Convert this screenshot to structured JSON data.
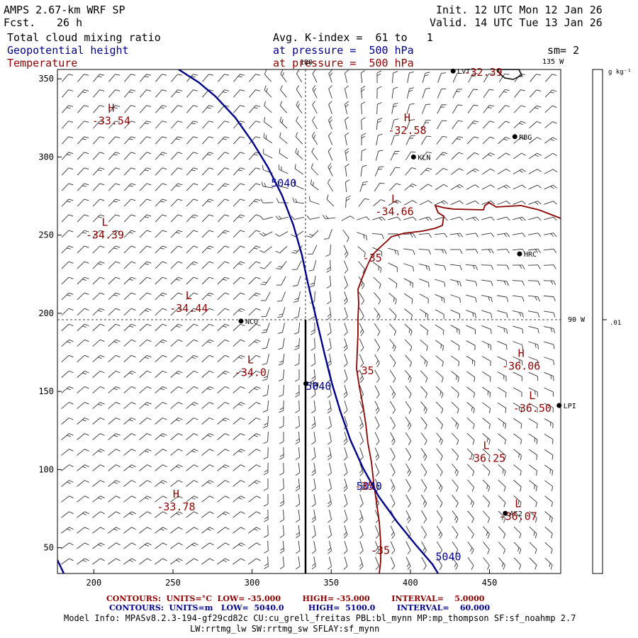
{
  "header": {
    "model": "AMPS 2.67-km WRF SP",
    "fcst_label": "Fcst.",
    "fcst_value": "26 h",
    "init": "Init. 12 UTC Mon 12 Jan 26",
    "valid": "Valid. 14 UTC Tue 13 Jan 26",
    "field1": "Total cloud mixing ratio",
    "field2": "Geopotential height",
    "field3": "Temperature",
    "avg": "Avg. K-index =  61 to   1",
    "pressure1": "at pressure =  500 hPa",
    "pressure2": "at pressure =  500 hPa",
    "sm": "sm= 2"
  },
  "axes": {
    "x_ticks": [
      "200",
      "250",
      "300",
      "350",
      "400",
      "450"
    ],
    "y_ticks": [
      "350",
      "300",
      "250",
      "200",
      "150",
      "100",
      "50"
    ],
    "lon_labels": {
      "top_180": "180",
      "top_135w": "135 W",
      "right_90w": "90 W"
    }
  },
  "colorbar": {
    "unit": "g kg⁻¹",
    "value": ".01"
  },
  "stations": [
    {
      "name": "LVT",
      "x": 427,
      "y": 355
    },
    {
      "name": "RBG",
      "x": 466,
      "y": 313
    },
    {
      "name": "KLN",
      "x": 402,
      "y": 300
    },
    {
      "name": "HRC",
      "x": 469,
      "y": 238
    },
    {
      "name": "NCO",
      "x": 293,
      "y": 195
    },
    {
      "name": "Hm",
      "x": 334,
      "y": 155
    },
    {
      "name": "AC2",
      "x": 460,
      "y": 72
    },
    {
      "name": "LPI",
      "x": 494,
      "y": 141
    }
  ],
  "extrema": [
    {
      "type": "H",
      "value": "-33.54",
      "x": 211,
      "y": 329
    },
    {
      "type": "H",
      "value": "-32.58",
      "x": 398,
      "y": 323
    },
    {
      "type": "L",
      "value": "-34.66",
      "x": 390,
      "y": 271
    },
    {
      "type": "L",
      "value": "-34.39",
      "x": 207,
      "y": 256
    },
    {
      "type": "L",
      "value": "-34.44",
      "x": 260,
      "y": 209
    },
    {
      "type": "L",
      "value": "-34.0",
      "x": 299,
      "y": 168
    },
    {
      "type": "H",
      "value": "-36.06",
      "x": 470,
      "y": 172
    },
    {
      "type": "L",
      "value": "-36.50",
      "x": 477,
      "y": 145
    },
    {
      "type": "L",
      "value": "-36.25",
      "x": 448,
      "y": 113
    },
    {
      "type": "H",
      "value": "-33.78",
      "x": 252,
      "y": 82
    },
    {
      "type": "L",
      "value": "-36.07",
      "x": 468,
      "y": 76
    }
  ],
  "contour_labels": {
    "height": [
      {
        "text": "5040",
        "x": 320,
        "y": 281
      },
      {
        "text": "5040",
        "x": 342,
        "y": 151
      },
      {
        "text": "5040",
        "x": 374,
        "y": 87
      },
      {
        "text": "5040",
        "x": 424,
        "y": 42
      }
    ],
    "temperature": [
      {
        "text": "-32.39",
        "x": 446,
        "y": 352
      },
      {
        "text": "-35",
        "x": 376,
        "y": 233
      },
      {
        "text": "-35",
        "x": 371,
        "y": 161
      },
      {
        "text": "-35",
        "x": 371,
        "y": 87
      },
      {
        "text": "-35",
        "x": 381,
        "y": 46
      }
    ]
  },
  "footer": {
    "line1": "CONTOURS:  UNITS=°C  LOW= -35.000        HIGH= -35.000        INTERVAL=    5.0000",
    "line2": "CONTOURS:  UNITS=m   LOW=  5040.0         HIGH=  5100.0        INTERVAL=    60.000",
    "line3": "Model Info: MPASv8.2.3-194-gf29cd82c CU:cu_grell_freitas PBL:bl_mynn MP:mp_thompson SF:sf_noahmp 2.7",
    "line4": "LW:rrtmg_lw SW:rrtmg_sw SFLAY:sf_mynn"
  },
  "colors": {
    "height": "#00008b",
    "temperature": "#8b0000",
    "barb": "#333333"
  }
}
